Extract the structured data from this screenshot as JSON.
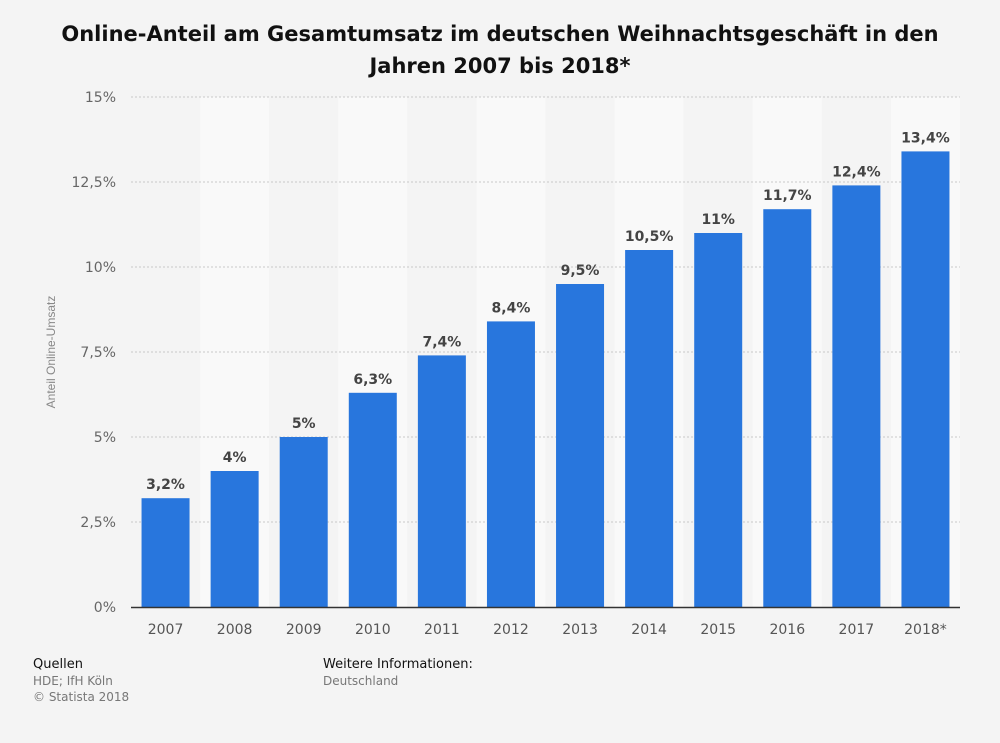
{
  "title": "Online-Anteil am Gesamtumsatz im deutschen Weihnachtsgeschäft in den Jahren 2007 bis 2018*",
  "chart_data": {
    "type": "bar",
    "categories": [
      "2007",
      "2008",
      "2009",
      "2010",
      "2011",
      "2012",
      "2013",
      "2014",
      "2015",
      "2016",
      "2017",
      "2018*"
    ],
    "values": [
      3.2,
      4,
      5,
      6.3,
      7.4,
      8.4,
      9.5,
      10.5,
      11,
      11.7,
      12.4,
      13.4
    ],
    "value_labels": [
      "3,2%",
      "4%",
      "5%",
      "6,3%",
      "7,4%",
      "8,4%",
      "9,5%",
      "10,5%",
      "11%",
      "11,7%",
      "12,4%",
      "13,4%"
    ],
    "ylabel": "Anteil Online-Umsatz",
    "xlabel": "",
    "ylim": [
      0,
      15
    ],
    "y_ticks": [
      0,
      2.5,
      5,
      7.5,
      10,
      12.5,
      15
    ],
    "y_tick_labels": [
      "0%",
      "2,5%",
      "5%",
      "7,5%",
      "10%",
      "12,5%",
      "15%"
    ],
    "grid": true,
    "bar_color": "#2876dd"
  },
  "footer": {
    "sources_heading": "Quellen",
    "sources_text": "HDE; IfH Köln",
    "copyright": "© Statista 2018",
    "info_heading": "Weitere Informationen:",
    "info_text": "Deutschland"
  }
}
